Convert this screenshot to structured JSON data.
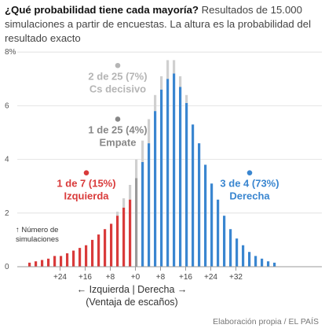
{
  "header": {
    "title": "¿Qué probabilidad tiene cada mayoría?",
    "subtitle": "Resultados de 15.000 simulaciones a partir de encuestas. La altura es la probabilidad del resultado exacto"
  },
  "source": "Elaboración propia / EL PAÍS",
  "chart_data": {
    "type": "bar",
    "x_order": "descending",
    "xlabel_line1": "← Izquierda | Derecha →",
    "xlabel_line2": "(Ventaja de escaños)",
    "y_unit_suffix": "%",
    "ylim": [
      0,
      8
    ],
    "yticks": [
      0,
      2,
      4,
      6,
      8
    ],
    "xticks": [
      {
        "value": 24,
        "label": "+24"
      },
      {
        "value": 16,
        "label": "+16"
      },
      {
        "value": 8,
        "label": "+8"
      },
      {
        "value": 0,
        "label": "+0"
      },
      {
        "value": -8,
        "label": "+8"
      },
      {
        "value": -16,
        "label": "+16"
      },
      {
        "value": -24,
        "label": "+24"
      },
      {
        "value": -32,
        "label": "+32"
      }
    ],
    "bin_width": 2,
    "colors": {
      "Izquierda": "#d93b3b",
      "Empate": "#9a9a9a",
      "Derecha": "#3a86d0",
      "Cs decisivo": "#d0d0d0",
      "axis": "#bbbbbb",
      "grid": "#dddddd"
    },
    "bins": [
      {
        "x": 34,
        "value": 0.15,
        "cs": 0,
        "group": "Izquierda"
      },
      {
        "x": 32,
        "value": 0.2,
        "cs": 0,
        "group": "Izquierda"
      },
      {
        "x": 30,
        "value": 0.25,
        "cs": 0,
        "group": "Izquierda"
      },
      {
        "x": 28,
        "value": 0.3,
        "cs": 0,
        "group": "Izquierda"
      },
      {
        "x": 26,
        "value": 0.4,
        "cs": 0,
        "group": "Izquierda"
      },
      {
        "x": 24,
        "value": 0.4,
        "cs": 0,
        "group": "Izquierda"
      },
      {
        "x": 22,
        "value": 0.5,
        "cs": 0,
        "group": "Izquierda"
      },
      {
        "x": 20,
        "value": 0.6,
        "cs": 0,
        "group": "Izquierda"
      },
      {
        "x": 18,
        "value": 0.7,
        "cs": 0,
        "group": "Izquierda"
      },
      {
        "x": 16,
        "value": 0.8,
        "cs": 0,
        "group": "Izquierda"
      },
      {
        "x": 14,
        "value": 1.0,
        "cs": 0,
        "group": "Izquierda"
      },
      {
        "x": 12,
        "value": 1.2,
        "cs": 0,
        "group": "Izquierda"
      },
      {
        "x": 10,
        "value": 1.4,
        "cs": 0,
        "group": "Izquierda"
      },
      {
        "x": 8,
        "value": 1.6,
        "cs": 0,
        "group": "Izquierda"
      },
      {
        "x": 6,
        "value": 1.9,
        "cs": 0.15,
        "group": "Izquierda"
      },
      {
        "x": 4,
        "value": 2.2,
        "cs": 0.35,
        "group": "Izquierda"
      },
      {
        "x": 2,
        "value": 2.5,
        "cs": 0.55,
        "group": "Izquierda"
      },
      {
        "x": 0,
        "value": 3.3,
        "cs": 0.7,
        "group": "Empate"
      },
      {
        "x": -2,
        "value": 3.9,
        "cs": 0.8,
        "group": "Derecha"
      },
      {
        "x": -4,
        "value": 4.6,
        "cs": 0.9,
        "group": "Derecha"
      },
      {
        "x": -6,
        "value": 5.8,
        "cs": 0.6,
        "group": "Derecha"
      },
      {
        "x": -8,
        "value": 6.6,
        "cs": 0.5,
        "group": "Derecha"
      },
      {
        "x": -10,
        "value": 7.0,
        "cs": 0.7,
        "group": "Derecha"
      },
      {
        "x": -12,
        "value": 7.2,
        "cs": 0.5,
        "group": "Derecha"
      },
      {
        "x": -14,
        "value": 6.7,
        "cs": 0.4,
        "group": "Derecha"
      },
      {
        "x": -16,
        "value": 6.1,
        "cs": 0.3,
        "group": "Derecha"
      },
      {
        "x": -18,
        "value": 5.3,
        "cs": 0,
        "group": "Derecha"
      },
      {
        "x": -20,
        "value": 4.6,
        "cs": 0,
        "group": "Derecha"
      },
      {
        "x": -22,
        "value": 3.8,
        "cs": 0,
        "group": "Derecha"
      },
      {
        "x": -24,
        "value": 3.1,
        "cs": 0,
        "group": "Derecha"
      },
      {
        "x": -26,
        "value": 2.5,
        "cs": 0,
        "group": "Derecha"
      },
      {
        "x": -28,
        "value": 1.9,
        "cs": 0,
        "group": "Derecha"
      },
      {
        "x": -30,
        "value": 1.4,
        "cs": 0,
        "group": "Derecha"
      },
      {
        "x": -32,
        "value": 1.05,
        "cs": 0,
        "group": "Derecha"
      },
      {
        "x": -34,
        "value": 0.8,
        "cs": 0,
        "group": "Derecha"
      },
      {
        "x": -36,
        "value": 0.55,
        "cs": 0,
        "group": "Derecha"
      },
      {
        "x": -38,
        "value": 0.4,
        "cs": 0,
        "group": "Derecha"
      },
      {
        "x": -40,
        "value": 0.3,
        "cs": 0,
        "group": "Derecha"
      },
      {
        "x": -42,
        "value": 0.2,
        "cs": 0,
        "group": "Derecha"
      },
      {
        "x": -44,
        "value": 0.15,
        "cs": 0,
        "group": "Derecha"
      }
    ],
    "annotations": [
      {
        "id": "cs",
        "line1": "2 de 25 (7%)",
        "line2": "Cs decisivo",
        "color": "#b5b5b5",
        "x": 6,
        "y": 7.5
      },
      {
        "id": "empate",
        "line1": "1 de 25 (4%)",
        "line2": "Empate",
        "color": "#888888",
        "x": 6,
        "y": 5.5
      },
      {
        "id": "izq",
        "line1": "1 de 7 (15%)",
        "line2": "Izquierda",
        "color": "#d93b3b",
        "x": 16,
        "y": 3.5
      },
      {
        "id": "der",
        "line1": "3 de 4 (73%)",
        "line2": "Derecha",
        "color": "#3a86d0",
        "x": -36,
        "y": 3.5
      }
    ],
    "count_note": {
      "arrow": "↑",
      "line1": "Número de",
      "line2": "simulaciones"
    }
  }
}
